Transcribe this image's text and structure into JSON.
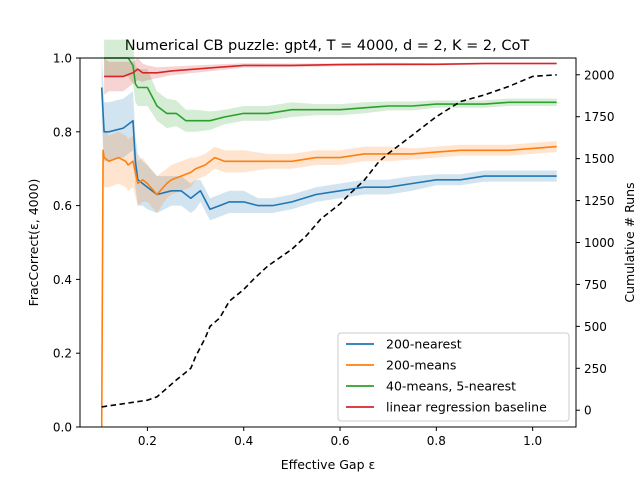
{
  "chart_data": {
    "type": "line",
    "title": "Numerical CB puzzle: gpt4, T = 4000, d = 2, K = 2, CoT",
    "xlabel": "Effective Gap ε",
    "ylabel": "FracCorrect(ε, 4000)",
    "y2label": "Cumulative # Runs",
    "xlim": [
      0.06,
      1.09
    ],
    "ylim": [
      0.0,
      1.0
    ],
    "y2lim": [
      -100,
      2100
    ],
    "x_ticks": [
      0.2,
      0.4,
      0.6,
      0.8,
      1.0
    ],
    "x_tick_labels": [
      "0.2",
      "0.4",
      "0.6",
      "0.8",
      "1.0"
    ],
    "y_ticks": [
      0.0,
      0.2,
      0.4,
      0.6,
      0.8,
      1.0
    ],
    "y_tick_labels": [
      "0.0",
      "0.2",
      "0.4",
      "0.6",
      "0.8",
      "1.0"
    ],
    "y2_ticks": [
      0,
      250,
      500,
      750,
      1000,
      1250,
      1500,
      1750,
      2000
    ],
    "y2_tick_labels": [
      "0",
      "250",
      "500",
      "750",
      "1000",
      "1250",
      "1500",
      "1750",
      "2000"
    ],
    "grid": false,
    "legend_position": "lower-right",
    "series": [
      {
        "name": "200-nearest",
        "color": "#1f77b4",
        "x": [
          0.105,
          0.11,
          0.12,
          0.15,
          0.16,
          0.17,
          0.175,
          0.18,
          0.19,
          0.2,
          0.22,
          0.25,
          0.27,
          0.29,
          0.3,
          0.31,
          0.33,
          0.35,
          0.37,
          0.4,
          0.43,
          0.46,
          0.5,
          0.55,
          0.6,
          0.65,
          0.7,
          0.75,
          0.8,
          0.85,
          0.9,
          0.95,
          1.0,
          1.05
        ],
        "y": [
          0.92,
          0.8,
          0.8,
          0.81,
          0.82,
          0.83,
          0.72,
          0.67,
          0.66,
          0.65,
          0.63,
          0.64,
          0.64,
          0.62,
          0.63,
          0.64,
          0.59,
          0.6,
          0.61,
          0.61,
          0.6,
          0.6,
          0.61,
          0.63,
          0.64,
          0.65,
          0.65,
          0.66,
          0.67,
          0.67,
          0.68,
          0.68,
          0.68,
          0.68
        ],
        "band": [
          0.1,
          0.08,
          0.08,
          0.08,
          0.08,
          0.08,
          0.07,
          0.07,
          0.06,
          0.06,
          0.05,
          0.04,
          0.04,
          0.04,
          0.04,
          0.03,
          0.03,
          0.03,
          0.03,
          0.03,
          0.02,
          0.02,
          0.02,
          0.02,
          0.02,
          0.02,
          0.02,
          0.02,
          0.015,
          0.015,
          0.015,
          0.015,
          0.015,
          0.015
        ]
      },
      {
        "name": "200-means",
        "color": "#ff7f0e",
        "x": [
          0.105,
          0.108,
          0.11,
          0.12,
          0.14,
          0.155,
          0.16,
          0.17,
          0.18,
          0.19,
          0.2,
          0.22,
          0.24,
          0.25,
          0.27,
          0.29,
          0.3,
          0.32,
          0.34,
          0.36,
          0.4,
          0.45,
          0.5,
          0.55,
          0.6,
          0.65,
          0.7,
          0.75,
          0.8,
          0.85,
          0.9,
          0.95,
          1.0,
          1.05
        ],
        "y": [
          0.0,
          0.75,
          0.73,
          0.72,
          0.73,
          0.72,
          0.71,
          0.72,
          0.66,
          0.67,
          0.66,
          0.63,
          0.66,
          0.67,
          0.68,
          0.69,
          0.7,
          0.71,
          0.73,
          0.72,
          0.72,
          0.72,
          0.72,
          0.73,
          0.73,
          0.74,
          0.74,
          0.74,
          0.745,
          0.75,
          0.75,
          0.75,
          0.755,
          0.76
        ],
        "band": [
          0.1,
          0.08,
          0.08,
          0.07,
          0.07,
          0.07,
          0.07,
          0.07,
          0.06,
          0.06,
          0.05,
          0.05,
          0.04,
          0.04,
          0.04,
          0.04,
          0.03,
          0.03,
          0.03,
          0.03,
          0.03,
          0.02,
          0.02,
          0.02,
          0.02,
          0.02,
          0.02,
          0.015,
          0.015,
          0.015,
          0.015,
          0.015,
          0.015,
          0.015
        ]
      },
      {
        "name": "40-means, 5-nearest",
        "color": "#2ca02c",
        "x": [
          0.11,
          0.12,
          0.14,
          0.16,
          0.17,
          0.175,
          0.18,
          0.2,
          0.22,
          0.24,
          0.26,
          0.28,
          0.3,
          0.33,
          0.36,
          0.4,
          0.45,
          0.5,
          0.55,
          0.6,
          0.65,
          0.7,
          0.75,
          0.8,
          0.85,
          0.9,
          0.95,
          1.0,
          1.05
        ],
        "y": [
          1.0,
          1.0,
          1.0,
          1.0,
          0.98,
          0.93,
          0.92,
          0.92,
          0.87,
          0.85,
          0.85,
          0.83,
          0.83,
          0.83,
          0.84,
          0.85,
          0.85,
          0.86,
          0.86,
          0.86,
          0.865,
          0.87,
          0.87,
          0.875,
          0.875,
          0.875,
          0.88,
          0.88,
          0.88
        ],
        "band": [
          0.05,
          0.05,
          0.05,
          0.05,
          0.05,
          0.05,
          0.05,
          0.05,
          0.04,
          0.04,
          0.035,
          0.03,
          0.03,
          0.025,
          0.02,
          0.02,
          0.02,
          0.02,
          0.015,
          0.015,
          0.015,
          0.012,
          0.012,
          0.01,
          0.01,
          0.01,
          0.01,
          0.01,
          0.01
        ]
      },
      {
        "name": "linear regression baseline",
        "color": "#d62728",
        "x": [
          0.11,
          0.12,
          0.15,
          0.17,
          0.18,
          0.19,
          0.2,
          0.22,
          0.25,
          0.3,
          0.35,
          0.4,
          0.5,
          0.6,
          0.7,
          0.8,
          0.9,
          1.0,
          1.05
        ],
        "y": [
          0.95,
          0.95,
          0.95,
          0.96,
          0.97,
          0.96,
          0.96,
          0.96,
          0.965,
          0.97,
          0.975,
          0.98,
          0.98,
          0.982,
          0.983,
          0.983,
          0.985,
          0.985,
          0.985
        ],
        "band": [
          0.05,
          0.04,
          0.04,
          0.03,
          0.03,
          0.025,
          0.02,
          0.015,
          0.012,
          0.01,
          0.008,
          0.006,
          0.005,
          0.004,
          0.004,
          0.003,
          0.003,
          0.003,
          0.003
        ]
      }
    ],
    "cumulative_runs": {
      "color": "#000000",
      "style": "dashed",
      "x": [
        0.105,
        0.2,
        0.22,
        0.26,
        0.29,
        0.3,
        0.32,
        0.33,
        0.35,
        0.37,
        0.4,
        0.42,
        0.45,
        0.48,
        0.5,
        0.53,
        0.56,
        0.6,
        0.62,
        0.65,
        0.68,
        0.7,
        0.75,
        0.8,
        0.85,
        0.9,
        0.95,
        1.0,
        1.05
      ],
      "y": [
        20,
        60,
        80,
        180,
        250,
        320,
        430,
        500,
        550,
        650,
        720,
        780,
        860,
        920,
        960,
        1040,
        1140,
        1230,
        1290,
        1370,
        1480,
        1530,
        1640,
        1750,
        1840,
        1880,
        1930,
        1990,
        2000
      ]
    }
  }
}
